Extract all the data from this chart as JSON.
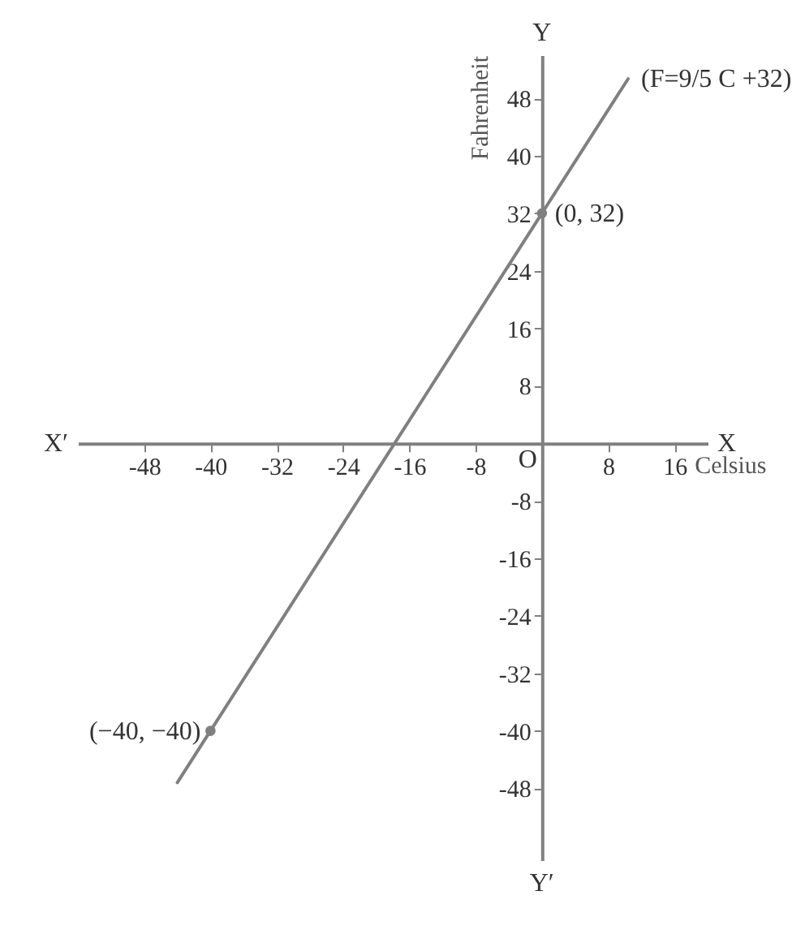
{
  "chart_data": {
    "type": "line",
    "xlabel": "Celsius",
    "ylabel": "Fahrenheit",
    "xlim": [
      -56,
      20
    ],
    "ylim": [
      -58,
      54
    ],
    "xticks": [
      -48,
      -40,
      -32,
      -24,
      -16,
      -8,
      8,
      16
    ],
    "yticks": [
      -48,
      -40,
      -32,
      -24,
      -16,
      -8,
      8,
      16,
      24,
      32,
      40,
      48
    ],
    "grid": false,
    "series": [
      {
        "color": "#808080",
        "x": [
          -44,
          -40,
          0,
          10.4
        ],
        "values": [
          -47.2,
          -40,
          32,
          50.7
        ]
      },
      {
        "type": "scatter",
        "color": "#808080",
        "marker": "circle",
        "x": [
          -40,
          0
        ],
        "values": [
          -40,
          32
        ]
      }
    ],
    "annotations": [
      "X′",
      "X",
      "Y",
      "Y′",
      "O",
      {
        "text": "(0, 32)",
        "x": 0,
        "y": 32
      },
      {
        "text": "(−40, −40)",
        "x": -40,
        "y": -40
      },
      {
        "text": "(F=9/5 C +32)",
        "x": 10.4,
        "y": 50.7
      }
    ]
  }
}
